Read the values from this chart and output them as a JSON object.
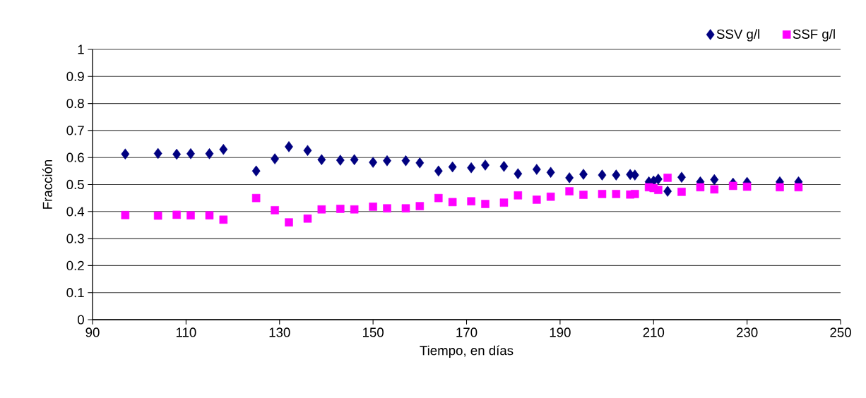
{
  "chart_data": {
    "type": "scatter",
    "xlabel": "Tiempo, en días",
    "ylabel": "Fracción",
    "x": [
      97,
      104,
      108,
      111,
      115,
      118,
      125,
      129,
      132,
      136,
      139,
      143,
      146,
      150,
      153,
      157,
      160,
      164,
      167,
      171,
      174,
      178,
      181,
      185,
      188,
      192,
      195,
      199,
      202,
      205,
      206,
      209,
      210,
      211,
      213,
      216,
      220,
      223,
      227,
      230,
      237,
      241
    ],
    "series": [
      {
        "name": "SSV g/l",
        "color": "#000080",
        "marker": "diamond",
        "values": [
          0.613,
          0.615,
          0.612,
          0.614,
          0.614,
          0.63,
          0.55,
          0.595,
          0.64,
          0.626,
          0.592,
          0.59,
          0.592,
          0.582,
          0.588,
          0.588,
          0.58,
          0.55,
          0.565,
          0.562,
          0.572,
          0.567,
          0.54,
          0.556,
          0.545,
          0.525,
          0.538,
          0.535,
          0.535,
          0.537,
          0.535,
          0.51,
          0.513,
          0.52,
          0.475,
          0.527,
          0.51,
          0.518,
          0.505,
          0.508,
          0.51,
          0.51
        ]
      },
      {
        "name": "SSF g/l",
        "color": "#ff00ff",
        "marker": "square",
        "values": [
          0.387,
          0.385,
          0.388,
          0.386,
          0.386,
          0.37,
          0.45,
          0.405,
          0.36,
          0.374,
          0.408,
          0.41,
          0.408,
          0.418,
          0.412,
          0.412,
          0.42,
          0.45,
          0.435,
          0.438,
          0.428,
          0.433,
          0.46,
          0.444,
          0.455,
          0.475,
          0.462,
          0.465,
          0.465,
          0.463,
          0.465,
          0.49,
          0.487,
          0.48,
          0.525,
          0.473,
          0.49,
          0.482,
          0.495,
          0.492,
          0.49,
          0.49
        ]
      }
    ],
    "xlim": [
      90,
      250
    ],
    "xticks": [
      90,
      110,
      130,
      150,
      170,
      190,
      210,
      230,
      250
    ],
    "ylim": [
      0,
      1
    ],
    "yticks": [
      0,
      0.1,
      0.2,
      0.3,
      0.4,
      0.5,
      0.6,
      0.7,
      0.8,
      0.9,
      1
    ],
    "grid": "y",
    "legend": "top right"
  }
}
